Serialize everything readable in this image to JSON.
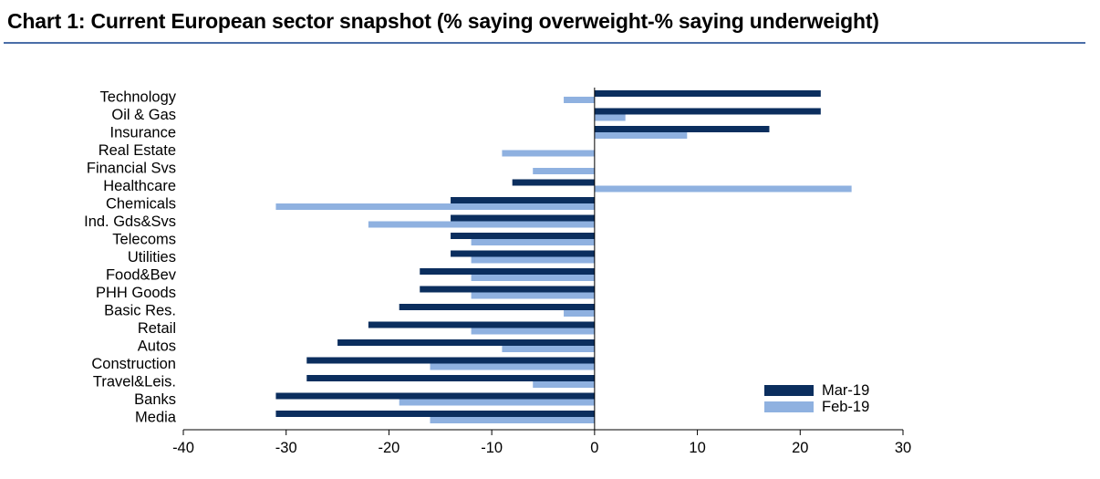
{
  "colors": {
    "series1": "#0b2e5e",
    "series2": "#8fb1e0",
    "axis": "#000000",
    "title_rule": "#4a6ea8"
  },
  "chart_data": {
    "type": "bar",
    "orientation": "horizontal",
    "title": "Chart 1: Current European sector snapshot (% saying overweight-% saying underweight)",
    "xlabel": "",
    "ylabel": "",
    "xlim": [
      -40,
      30
    ],
    "xticks": [
      -40,
      -30,
      -20,
      -10,
      0,
      10,
      20,
      30
    ],
    "legend_position": "bottom-right",
    "categories": [
      "Technology",
      "Oil & Gas",
      "Insurance",
      "Real Estate",
      "Financial Svs",
      "Healthcare",
      "Chemicals",
      "Ind. Gds&Svs",
      "Telecoms",
      "Utilities",
      "Food&Bev",
      "PHH Goods",
      "Basic Res.",
      "Retail",
      "Autos",
      "Construction",
      "Travel&Leis.",
      "Banks",
      "Media"
    ],
    "series": [
      {
        "name": "Mar-19",
        "values": [
          22,
          22,
          17,
          0,
          0,
          -8,
          -14,
          -14,
          -14,
          -14,
          -17,
          -17,
          -19,
          -22,
          -25,
          -28,
          -28,
          -31,
          -31
        ]
      },
      {
        "name": "Feb-19",
        "values": [
          -3,
          3,
          9,
          -9,
          -6,
          25,
          -31,
          -22,
          -12,
          -12,
          -12,
          -12,
          -3,
          -12,
          -9,
          -16,
          -6,
          -19,
          -16
        ]
      }
    ]
  }
}
